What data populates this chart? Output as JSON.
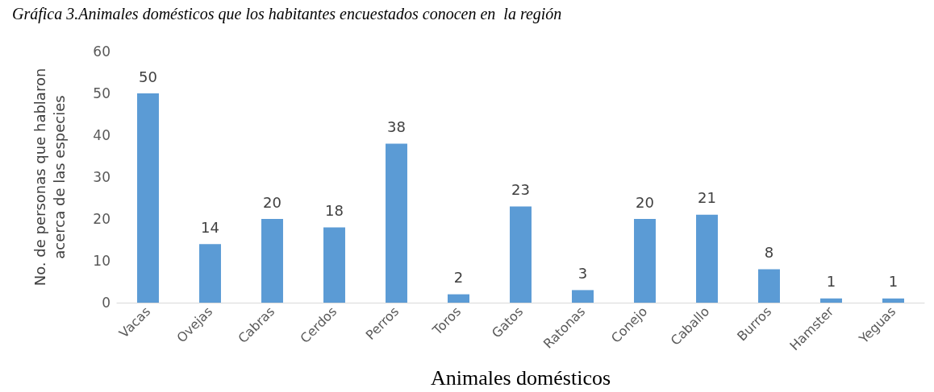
{
  "chart_data": {
    "type": "bar",
    "title": "Gráfica 3.Animales domésticos que los habitantes encuestados conocen en  la región",
    "xlabel": "Animales domésticos",
    "ylabel": "No. de personas que hablaron\nacerca de las especies",
    "categories": [
      "Vacas",
      "Ovejas",
      "Cabras",
      "Cerdos",
      "Perros",
      "Toros",
      "Gatos",
      "Ratonas",
      "Conejo",
      "Caballo",
      "Burros",
      "Hamster",
      "Yeguas"
    ],
    "values": [
      50,
      14,
      20,
      18,
      38,
      2,
      23,
      3,
      20,
      21,
      8,
      1,
      1
    ],
    "color": "#5b9bd5",
    "ylim": [
      0,
      60
    ],
    "yticks": [
      0,
      10,
      20,
      30,
      40,
      50,
      60
    ],
    "grid": false,
    "data_labels": true
  }
}
